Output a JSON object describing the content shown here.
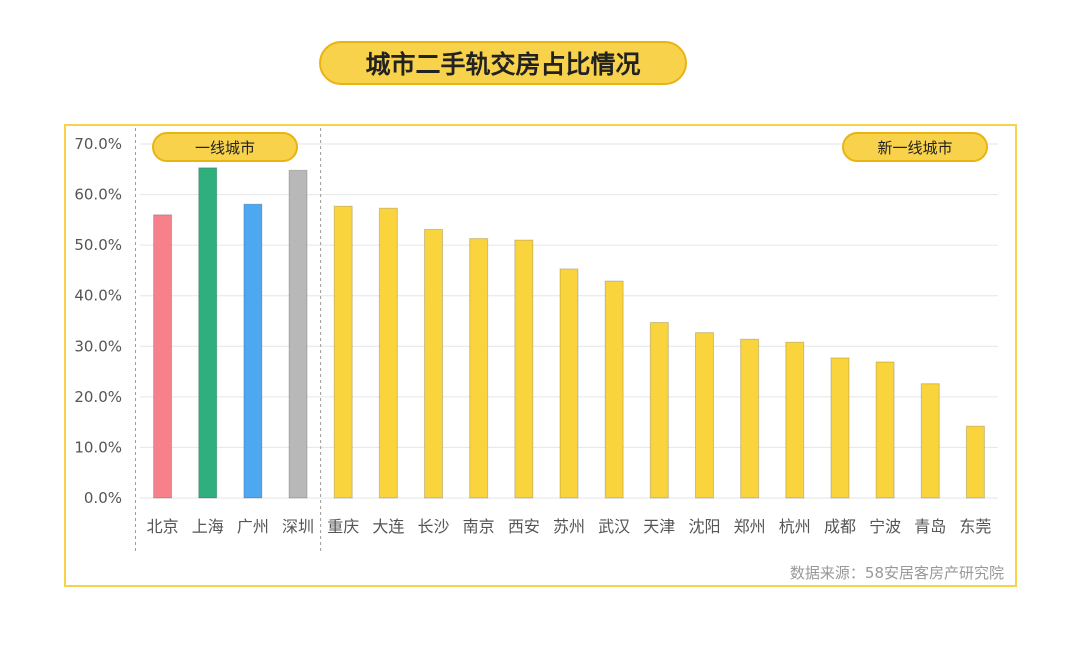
{
  "header": {
    "title": "城市二手轨交房占比情况"
  },
  "groups": {
    "tier1_label": "一线城市",
    "new_tier1_label": "新一线城市"
  },
  "source": "数据来源：58安居客房产研究院",
  "colors": {
    "北京": "#f6818b",
    "上海": "#2eaf7d",
    "广州": "#4da7f1",
    "深圳": "#b9b8b8",
    "default": "#f9d43d",
    "frame": "#f9d24b",
    "grid": "#e6e6e6",
    "axis_text": "#555555"
  },
  "chart_data": {
    "type": "bar",
    "title": "城市二手轨交房占比情况",
    "xlabel": "",
    "ylabel": "",
    "ylim": [
      0,
      70
    ],
    "yticks": [
      "0.0%",
      "10.0%",
      "20.0%",
      "30.0%",
      "40.0%",
      "50.0%",
      "60.0%",
      "70.0%"
    ],
    "grid": true,
    "categories": [
      "北京",
      "上海",
      "广州",
      "深圳",
      "重庆",
      "大连",
      "长沙",
      "南京",
      "西安",
      "苏州",
      "武汉",
      "天津",
      "沈阳",
      "郑州",
      "杭州",
      "成都",
      "宁波",
      "青岛",
      "东莞"
    ],
    "values": [
      56.0,
      65.3,
      58.1,
      64.8,
      57.7,
      57.3,
      53.1,
      51.3,
      51.0,
      45.3,
      42.9,
      34.7,
      32.7,
      31.4,
      30.8,
      27.7,
      26.9,
      22.6,
      14.2
    ],
    "group_split": 4
  }
}
